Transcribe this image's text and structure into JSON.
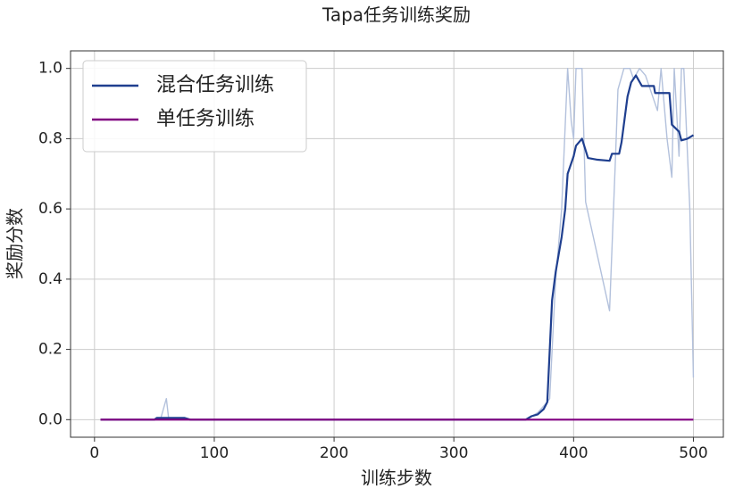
{
  "chart_data": {
    "type": "line",
    "title": "Tapa任务训练奖励",
    "x_label": "训练步数",
    "y_label": "奖励分数",
    "xlim": [
      -20,
      525
    ],
    "ylim": [
      -0.05,
      1.05
    ],
    "xticks": [
      0,
      100,
      200,
      300,
      400,
      500
    ],
    "yticks": [
      {
        "value": 0,
        "label": "0.0"
      },
      {
        "value": 0.2,
        "label": "0.2"
      },
      {
        "value": 0.4,
        "label": "0.4"
      },
      {
        "value": 0.6,
        "label": "0.6"
      },
      {
        "value": 0.8,
        "label": "0.8"
      },
      {
        "value": 1,
        "label": "1.0"
      }
    ],
    "grid": true,
    "legend": "upper left",
    "series": [
      {
        "color": "#b3c1dc",
        "x": [
          5,
          55,
          60,
          62,
          80,
          360,
          370,
          378,
          380,
          385,
          390,
          395,
          398,
          400,
          402,
          407,
          410,
          430,
          435,
          437,
          442,
          447,
          450,
          455,
          460,
          470,
          473,
          478,
          482,
          484,
          488,
          490,
          492,
          497,
          500
        ],
        "values": [
          0,
          0,
          0.06,
          0,
          0,
          0,
          0.02,
          0.05,
          0.06,
          0.4,
          0.6,
          1.0,
          0.85,
          0.8,
          1.0,
          1.0,
          0.62,
          0.31,
          0.75,
          0.94,
          1.0,
          1.0,
          0.97,
          1.0,
          0.98,
          0.88,
          1.0,
          0.8,
          0.69,
          1.0,
          0.75,
          1.0,
          1.0,
          0.6,
          0.12
        ]
      },
      {
        "name": "混合任务训练",
        "color": "#1f3f8f",
        "x": [
          5,
          50,
          52,
          75,
          80,
          360,
          365,
          370,
          375,
          378,
          382,
          385,
          390,
          393,
          395,
          400,
          402,
          407,
          412,
          420,
          430,
          432,
          438,
          440,
          445,
          448,
          452,
          457,
          467,
          468,
          480,
          482,
          488,
          490,
          495,
          500
        ],
        "values": [
          0,
          0,
          0.005,
          0.005,
          0,
          0,
          0.01,
          0.015,
          0.03,
          0.05,
          0.34,
          0.42,
          0.52,
          0.6,
          0.7,
          0.75,
          0.78,
          0.8,
          0.745,
          0.74,
          0.737,
          0.757,
          0.757,
          0.79,
          0.92,
          0.96,
          0.98,
          0.95,
          0.95,
          0.93,
          0.93,
          0.84,
          0.82,
          0.795,
          0.8,
          0.81
        ]
      },
      {
        "name": "单任务训练",
        "color": "#800080",
        "x": [
          5,
          500
        ],
        "values": [
          0,
          0
        ]
      }
    ]
  }
}
